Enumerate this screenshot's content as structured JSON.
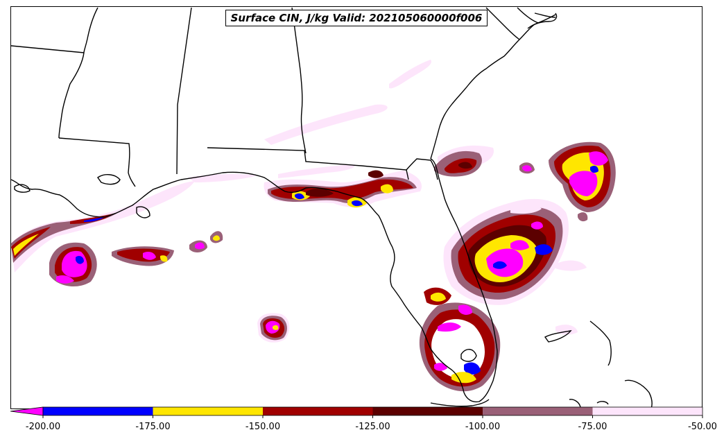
{
  "title": "Surface CIN, J/kg Valid: 202105060000f006",
  "colorbar": {
    "min": -200.0,
    "max": -50.0,
    "extend": "min",
    "ticks": [
      "-200.00",
      "-175.00",
      "-150.00",
      "-125.00",
      "-100.00",
      "-75.00",
      "-50.00"
    ],
    "bins": [
      {
        "from": -200,
        "to": -175,
        "color": "#0000ff"
      },
      {
        "from": -175,
        "to": -150,
        "color": "#ffe600"
      },
      {
        "from": -150,
        "to": -125,
        "color": "#a00000"
      },
      {
        "from": -125,
        "to": -100,
        "color": "#5c0000"
      },
      {
        "from": -100,
        "to": -75,
        "color": "#9a6077"
      },
      {
        "from": -75,
        "to": -50,
        "color": "#fde5fb"
      }
    ],
    "under_color": "#ff00ff"
  }
}
